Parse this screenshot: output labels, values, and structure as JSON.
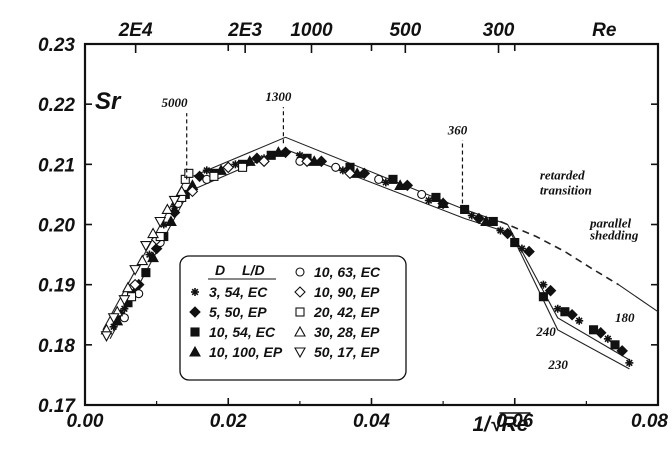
{
  "chart_data": {
    "type": "scatter",
    "title": "",
    "xlabel": "1/√Re",
    "ylabel": "Sr",
    "xlim": [
      0.0,
      0.08
    ],
    "ylim": [
      0.17,
      0.23
    ],
    "x_ticks": [
      0.0,
      0.02,
      0.04,
      0.06,
      0.08
    ],
    "x_tick_labels": [
      "0.00",
      "0.02",
      "0.04",
      "0.06",
      "0.08"
    ],
    "y_ticks": [
      0.17,
      0.18,
      0.19,
      0.2,
      0.21,
      0.22,
      0.23
    ],
    "y_tick_labels": [
      "0.17",
      "0.18",
      "0.19",
      "0.20",
      "0.21",
      "0.22",
      "0.23"
    ],
    "top_axis": {
      "label": "Re",
      "ticks": [
        {
          "label": "2E4",
          "re": 20000
        },
        {
          "label": "2E3",
          "re": 2000
        },
        {
          "label": "1000",
          "re": 1000
        },
        {
          "label": "500",
          "re": 500
        },
        {
          "label": "300",
          "re": 300
        }
      ]
    },
    "grid": false,
    "legend_position": "bottom-left",
    "legend_header": [
      "D",
      "L/D"
    ],
    "series": [
      {
        "name": "3, 54, EC",
        "marker": "asterisk",
        "points": [
          [
            0.004,
            0.183
          ],
          [
            0.0055,
            0.186
          ],
          [
            0.007,
            0.19
          ],
          [
            0.009,
            0.195
          ],
          [
            0.011,
            0.2
          ],
          [
            0.0125,
            0.203
          ],
          [
            0.017,
            0.209
          ],
          [
            0.021,
            0.21
          ],
          [
            0.025,
            0.211
          ],
          [
            0.03,
            0.2115
          ],
          [
            0.036,
            0.209
          ],
          [
            0.042,
            0.207
          ],
          [
            0.048,
            0.204
          ],
          [
            0.054,
            0.2015
          ],
          [
            0.058,
            0.199
          ],
          [
            0.061,
            0.196
          ],
          [
            0.064,
            0.19
          ],
          [
            0.066,
            0.186
          ],
          [
            0.069,
            0.184
          ],
          [
            0.073,
            0.181
          ],
          [
            0.076,
            0.177
          ]
        ]
      },
      {
        "name": "5, 50, EP",
        "marker": "diamond-filled",
        "points": [
          [
            0.005,
            0.185
          ],
          [
            0.0075,
            0.19
          ],
          [
            0.01,
            0.196
          ],
          [
            0.0125,
            0.202
          ],
          [
            0.016,
            0.208
          ],
          [
            0.02,
            0.2095
          ],
          [
            0.024,
            0.211
          ],
          [
            0.028,
            0.212
          ],
          [
            0.033,
            0.2105
          ],
          [
            0.039,
            0.2085
          ],
          [
            0.045,
            0.2065
          ],
          [
            0.05,
            0.2035
          ],
          [
            0.055,
            0.201
          ],
          [
            0.059,
            0.1985
          ],
          [
            0.062,
            0.1955
          ],
          [
            0.065,
            0.189
          ],
          [
            0.068,
            0.185
          ],
          [
            0.072,
            0.182
          ],
          [
            0.075,
            0.179
          ]
        ]
      },
      {
        "name": "10, 54, EC",
        "marker": "square-filled",
        "points": [
          [
            0.006,
            0.187
          ],
          [
            0.0085,
            0.192
          ],
          [
            0.011,
            0.198
          ],
          [
            0.014,
            0.205
          ],
          [
            0.018,
            0.2085
          ],
          [
            0.022,
            0.21
          ],
          [
            0.026,
            0.2115
          ],
          [
            0.031,
            0.211
          ],
          [
            0.037,
            0.2095
          ],
          [
            0.043,
            0.2075
          ],
          [
            0.049,
            0.2045
          ],
          [
            0.053,
            0.2025
          ],
          [
            0.057,
            0.2005
          ],
          [
            0.06,
            0.197
          ],
          [
            0.064,
            0.188
          ],
          [
            0.067,
            0.1855
          ],
          [
            0.071,
            0.1825
          ],
          [
            0.074,
            0.18
          ]
        ]
      },
      {
        "name": "10, 100, EP",
        "marker": "triangle-up-filled",
        "points": [
          [
            0.0045,
            0.184
          ],
          [
            0.007,
            0.189
          ],
          [
            0.0095,
            0.1945
          ],
          [
            0.012,
            0.2005
          ],
          [
            0.015,
            0.2065
          ],
          [
            0.019,
            0.209
          ],
          [
            0.023,
            0.2105
          ],
          [
            0.027,
            0.212
          ],
          [
            0.032,
            0.2105
          ],
          [
            0.038,
            0.2085
          ],
          [
            0.044,
            0.2065
          ],
          [
            0.05,
            0.2035
          ],
          [
            0.056,
            0.2005
          ]
        ]
      },
      {
        "name": "10, 63, EC",
        "marker": "circle-open",
        "points": [
          [
            0.0055,
            0.1845
          ],
          [
            0.0075,
            0.1885
          ],
          [
            0.0105,
            0.197
          ],
          [
            0.013,
            0.2035
          ],
          [
            0.017,
            0.2075
          ],
          [
            0.03,
            0.2105
          ],
          [
            0.035,
            0.2095
          ],
          [
            0.041,
            0.2075
          ],
          [
            0.047,
            0.205
          ]
        ]
      },
      {
        "name": "10, 90, EP",
        "marker": "diamond-open",
        "points": [
          [
            0.007,
            0.19
          ],
          [
            0.01,
            0.1975
          ],
          [
            0.015,
            0.2055
          ],
          [
            0.02,
            0.2095
          ],
          [
            0.025,
            0.2105
          ],
          [
            0.031,
            0.2105
          ],
          [
            0.037,
            0.2085
          ]
        ]
      },
      {
        "name": "20, 42, EP",
        "marker": "square-open",
        "points": [
          [
            0.0065,
            0.188
          ],
          [
            0.0105,
            0.198
          ],
          [
            0.0135,
            0.2045
          ],
          [
            0.014,
            0.2075
          ],
          [
            0.0145,
            0.2085
          ],
          [
            0.018,
            0.208
          ],
          [
            0.022,
            0.2095
          ]
        ]
      },
      {
        "name": "30, 28, EP",
        "marker": "triangle-up-open",
        "points": [
          [
            0.003,
            0.1825
          ],
          [
            0.0045,
            0.1855
          ],
          [
            0.006,
            0.1895
          ],
          [
            0.008,
            0.194
          ],
          [
            0.0095,
            0.1985
          ],
          [
            0.0115,
            0.2025
          ],
          [
            0.0135,
            0.2055
          ]
        ]
      },
      {
        "name": "50, 17, EP",
        "marker": "triangle-down-open",
        "points": [
          [
            0.003,
            0.1815
          ],
          [
            0.004,
            0.1845
          ],
          [
            0.0055,
            0.1875
          ],
          [
            0.007,
            0.1925
          ],
          [
            0.0085,
            0.1965
          ],
          [
            0.0105,
            0.2005
          ],
          [
            0.0125,
            0.204
          ]
        ]
      }
    ],
    "curves": [
      {
        "style": "solid",
        "points": [
          [
            0.0025,
            0.1825
          ],
          [
            0.014,
            0.2075
          ],
          [
            0.028,
            0.2145
          ],
          [
            0.053,
            0.2025
          ],
          [
            0.059,
            0.2
          ],
          [
            0.066,
            0.1845
          ],
          [
            0.076,
            0.1775
          ]
        ]
      },
      {
        "style": "solid",
        "points": [
          [
            0.0035,
            0.181
          ],
          [
            0.0145,
            0.2055
          ],
          [
            0.028,
            0.2125
          ],
          [
            0.053,
            0.201
          ],
          [
            0.0595,
            0.1985
          ],
          [
            0.066,
            0.1825
          ],
          [
            0.076,
            0.176
          ]
        ]
      },
      {
        "style": "dashed",
        "points": [
          [
            0.058,
            0.2005
          ],
          [
            0.063,
            0.198
          ],
          [
            0.067,
            0.1955
          ],
          [
            0.071,
            0.1925
          ],
          [
            0.0745,
            0.19
          ]
        ]
      },
      {
        "style": "solid",
        "points": [
          [
            0.0745,
            0.19
          ],
          [
            0.08,
            0.1855
          ]
        ]
      }
    ],
    "annotations": [
      {
        "text": "5000",
        "x": 0.0142,
        "y": 0.2075,
        "label_at": [
          0.0125,
          0.2195
        ]
      },
      {
        "text": "1300",
        "x": 0.0277,
        "y": 0.2135,
        "label_at": [
          0.027,
          0.2205
        ]
      },
      {
        "text": "360",
        "x": 0.0527,
        "y": 0.2035,
        "label_at": [
          0.052,
          0.215
        ]
      },
      {
        "text": "retarded",
        "x": 0.0635,
        "y": 0.2075
      },
      {
        "text": "transition",
        "x": 0.0635,
        "y": 0.205
      },
      {
        "text": "parallel",
        "x": 0.0705,
        "y": 0.1995
      },
      {
        "text": "shedding",
        "x": 0.0705,
        "y": 0.1975
      },
      {
        "text": "240",
        "x": 0.063,
        "y": 0.1815
      },
      {
        "text": "230",
        "x": 0.0647,
        "y": 0.176
      },
      {
        "text": "180",
        "x": 0.074,
        "y": 0.1838
      }
    ]
  }
}
